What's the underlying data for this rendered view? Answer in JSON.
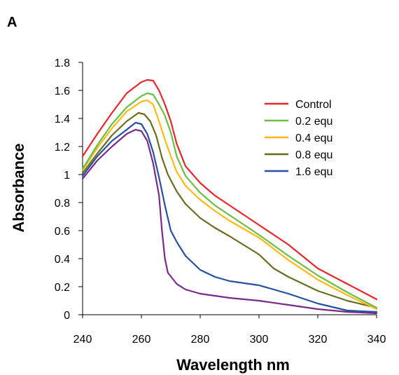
{
  "panel_label": "A",
  "chart_data": {
    "type": "line",
    "xlabel": "Wavelength nm",
    "ylabel": "Absorbance",
    "xlim": [
      240,
      340
    ],
    "ylim": [
      0,
      1.8
    ],
    "x_ticks": [
      "240",
      "260",
      "280",
      "300",
      "320",
      "340"
    ],
    "y_ticks": [
      "0",
      "0.2",
      "0.4",
      "0.6",
      "0.8",
      "1",
      "1.2",
      "1.4",
      "1.6",
      "1.8"
    ],
    "legend_position": "upper-right",
    "grid": false,
    "series": [
      {
        "name": "Control",
        "color": "#e8262b",
        "points": [
          [
            240,
            1.13
          ],
          [
            245,
            1.29
          ],
          [
            250,
            1.44
          ],
          [
            255,
            1.58
          ],
          [
            260,
            1.66
          ],
          [
            262,
            1.675
          ],
          [
            264,
            1.67
          ],
          [
            266,
            1.6
          ],
          [
            268,
            1.5
          ],
          [
            270,
            1.38
          ],
          [
            272,
            1.22
          ],
          [
            275,
            1.06
          ],
          [
            280,
            0.94
          ],
          [
            285,
            0.85
          ],
          [
            290,
            0.78
          ],
          [
            300,
            0.64
          ],
          [
            310,
            0.5
          ],
          [
            320,
            0.33
          ],
          [
            330,
            0.22
          ],
          [
            340,
            0.11
          ]
        ]
      },
      {
        "name": "0.2 equ",
        "color": "#6cbd45",
        "points": [
          [
            240,
            1.04
          ],
          [
            245,
            1.21
          ],
          [
            250,
            1.36
          ],
          [
            255,
            1.48
          ],
          [
            260,
            1.56
          ],
          [
            262,
            1.58
          ],
          [
            264,
            1.57
          ],
          [
            266,
            1.5
          ],
          [
            268,
            1.42
          ],
          [
            270,
            1.3
          ],
          [
            272,
            1.13
          ],
          [
            275,
            0.99
          ],
          [
            280,
            0.87
          ],
          [
            285,
            0.78
          ],
          [
            290,
            0.71
          ],
          [
            300,
            0.57
          ],
          [
            310,
            0.42
          ],
          [
            320,
            0.28
          ],
          [
            330,
            0.16
          ],
          [
            340,
            0.05
          ]
        ]
      },
      {
        "name": "0.4 equ",
        "color": "#fdb813",
        "points": [
          [
            240,
            1.03
          ],
          [
            245,
            1.19
          ],
          [
            250,
            1.33
          ],
          [
            255,
            1.45
          ],
          [
            260,
            1.52
          ],
          [
            262,
            1.53
          ],
          [
            264,
            1.5
          ],
          [
            266,
            1.38
          ],
          [
            268,
            1.25
          ],
          [
            270,
            1.13
          ],
          [
            272,
            1.02
          ],
          [
            275,
            0.92
          ],
          [
            280,
            0.82
          ],
          [
            285,
            0.74
          ],
          [
            290,
            0.67
          ],
          [
            300,
            0.55
          ],
          [
            310,
            0.39
          ],
          [
            320,
            0.25
          ],
          [
            330,
            0.14
          ],
          [
            340,
            0.04
          ]
        ]
      },
      {
        "name": "0.8 equ",
        "color": "#6b6b1f",
        "points": [
          [
            240,
            1.01
          ],
          [
            245,
            1.15
          ],
          [
            250,
            1.28
          ],
          [
            255,
            1.38
          ],
          [
            259,
            1.44
          ],
          [
            261,
            1.43
          ],
          [
            263,
            1.38
          ],
          [
            265,
            1.28
          ],
          [
            267,
            1.12
          ],
          [
            269,
            1.0
          ],
          [
            272,
            0.88
          ],
          [
            275,
            0.79
          ],
          [
            280,
            0.69
          ],
          [
            285,
            0.62
          ],
          [
            290,
            0.56
          ],
          [
            300,
            0.43
          ],
          [
            305,
            0.33
          ],
          [
            310,
            0.27
          ],
          [
            320,
            0.17
          ],
          [
            330,
            0.1
          ],
          [
            340,
            0.05
          ]
        ]
      },
      {
        "name": "1.6 equ",
        "color": "#2650a3",
        "points": [
          [
            240,
            0.99
          ],
          [
            245,
            1.13
          ],
          [
            250,
            1.24
          ],
          [
            255,
            1.32
          ],
          [
            258,
            1.37
          ],
          [
            260,
            1.36
          ],
          [
            262,
            1.29
          ],
          [
            264,
            1.16
          ],
          [
            266,
            0.98
          ],
          [
            268,
            0.78
          ],
          [
            270,
            0.6
          ],
          [
            272,
            0.52
          ],
          [
            275,
            0.42
          ],
          [
            280,
            0.32
          ],
          [
            285,
            0.27
          ],
          [
            290,
            0.24
          ],
          [
            300,
            0.21
          ],
          [
            305,
            0.18
          ],
          [
            310,
            0.15
          ],
          [
            320,
            0.08
          ],
          [
            330,
            0.03
          ],
          [
            340,
            0.02
          ]
        ]
      },
      {
        "name": "",
        "color": "#7a2a8a",
        "points": [
          [
            240,
            0.97
          ],
          [
            245,
            1.1
          ],
          [
            250,
            1.2
          ],
          [
            255,
            1.29
          ],
          [
            258,
            1.32
          ],
          [
            260,
            1.31
          ],
          [
            262,
            1.24
          ],
          [
            264,
            1.08
          ],
          [
            266,
            0.85
          ],
          [
            267,
            0.6
          ],
          [
            268,
            0.4
          ],
          [
            269,
            0.3
          ],
          [
            272,
            0.22
          ],
          [
            275,
            0.18
          ],
          [
            280,
            0.15
          ],
          [
            290,
            0.12
          ],
          [
            300,
            0.1
          ],
          [
            310,
            0.07
          ],
          [
            320,
            0.04
          ],
          [
            330,
            0.02
          ],
          [
            340,
            0.01
          ]
        ]
      }
    ]
  }
}
